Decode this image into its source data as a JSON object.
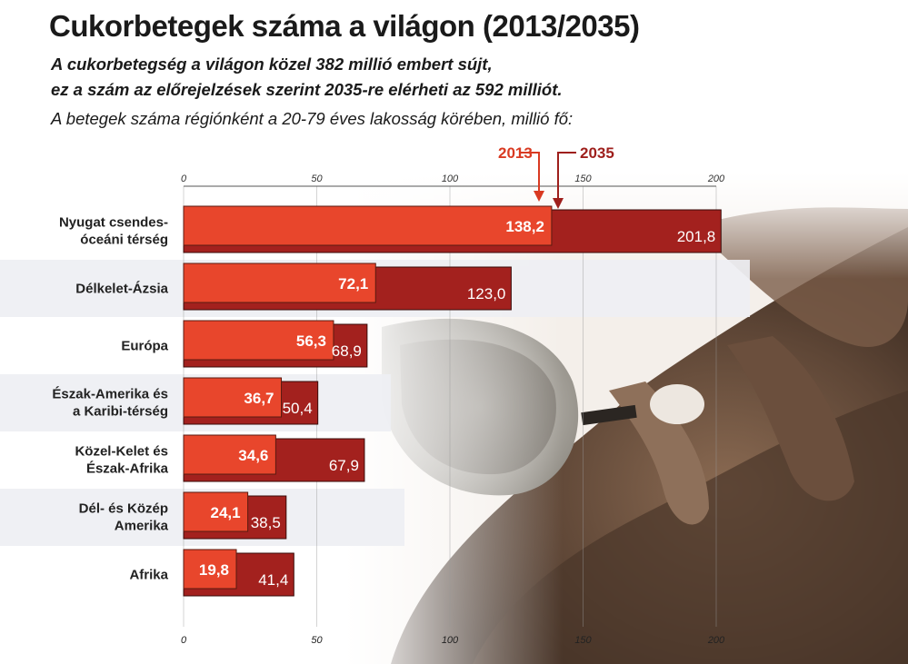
{
  "header": {
    "title": "Cukorbetegek száma a világon (2013/2035)",
    "subtitle_line1": "A cukorbetegség a világon közel 382 millió embert sújt,",
    "subtitle_line2": "ez a szám az előrejelzések szerint 2035-re elérheti az 592 milliót.",
    "note": "A betegek száma régiónként a 20-79 éves lakosság körében, millió fő:"
  },
  "colors": {
    "bar_2013": "#e8462c",
    "bar_2035": "#a3211e",
    "label_2013": "#d93a22",
    "label_2035": "#9e1f1c",
    "band": "#eeeff3"
  },
  "chart_data": {
    "type": "bar",
    "orientation": "horizontal",
    "categories": [
      [
        "Nyugat csendes-",
        "óceáni térség"
      ],
      [
        "Délkelet-Ázsia"
      ],
      [
        "Európa"
      ],
      [
        "Észak-Amerika és",
        "a Karibi-térség"
      ],
      [
        "Közel-Kelet és",
        "Észak-Afrika"
      ],
      [
        "Dél- és Közép",
        "Amerika"
      ],
      [
        "Afrika"
      ]
    ],
    "series": [
      {
        "name": "2013",
        "values": [
          138.2,
          72.1,
          56.3,
          36.7,
          34.6,
          24.1,
          19.8
        ]
      },
      {
        "name": "2035",
        "values": [
          201.8,
          123.0,
          68.9,
          50.4,
          67.9,
          38.5,
          41.4
        ]
      }
    ],
    "value_labels": {
      "2013": [
        "138,2",
        "72,1",
        "56,3",
        "36,7",
        "34,6",
        "24,1",
        "19,8"
      ],
      "2035": [
        "201,8",
        "123,0",
        "68,9",
        "50,4",
        "67,9",
        "38,5",
        "41,4"
      ]
    },
    "xlim": [
      0,
      200
    ],
    "ticks": [
      0,
      50,
      100,
      150,
      200
    ],
    "tick_labels": [
      "0",
      "50",
      "100",
      "150",
      "200"
    ],
    "legend": [
      "2013",
      "2035"
    ],
    "grid": true
  }
}
